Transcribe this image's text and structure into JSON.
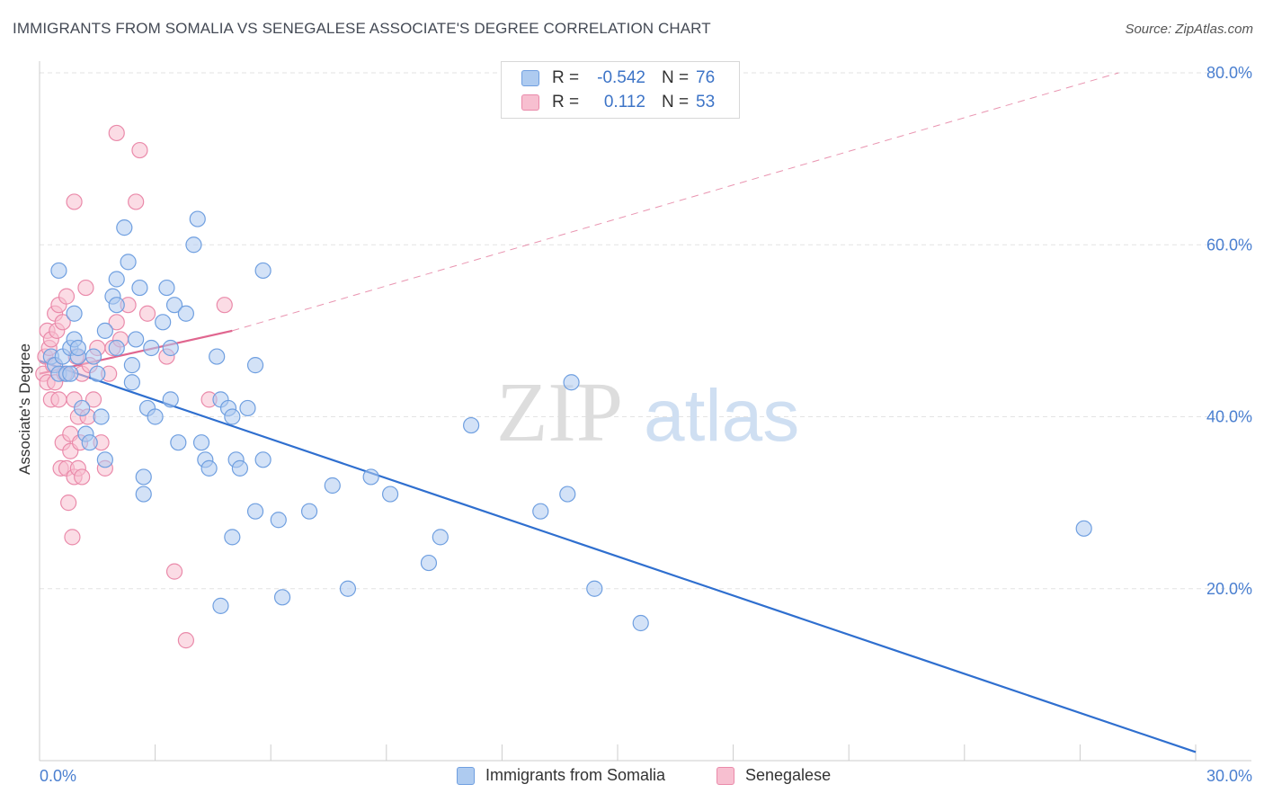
{
  "title": "IMMIGRANTS FROM SOMALIA VS SENEGALESE ASSOCIATE'S DEGREE CORRELATION CHART",
  "source": "Source: ZipAtlas.com",
  "watermark": {
    "zip": "ZIP",
    "atlas": "atlas"
  },
  "colors": {
    "blue_fill": "#aecbf0",
    "blue_stroke": "#6f9fe0",
    "blue_line": "#2f6fcf",
    "pink_fill": "#f7bfd0",
    "pink_stroke": "#ea8aaa",
    "pink_line": "#e0668f",
    "tick_text": "#4a7fd0",
    "grid": "#e3e3e3"
  },
  "legend": {
    "rows": [
      {
        "r_label": "R =",
        "r_value": "-0.542",
        "n_label": "N =",
        "n_value": "76"
      },
      {
        "r_label": "R =",
        "r_value": "0.112",
        "n_label": "N =",
        "n_value": "53"
      }
    ]
  },
  "chart_data": {
    "type": "scatter",
    "title": "IMMIGRANTS FROM SOMALIA VS SENEGALESE ASSOCIATE'S DEGREE CORRELATION CHART",
    "xlabel": "",
    "ylabel": "Associate's Degree",
    "xlim": [
      0,
      30
    ],
    "ylim": [
      0,
      80
    ],
    "x_tick_labels": [
      "0.0%",
      "30.0%"
    ],
    "y_ticks": [
      20,
      40,
      60,
      80
    ],
    "y_tick_labels": [
      "20.0%",
      "40.0%",
      "60.0%",
      "80.0%"
    ],
    "grid": true,
    "legend_position": "top-center",
    "series": [
      {
        "name": "Immigrants from Somalia",
        "r": -0.542,
        "n": 76,
        "trend": {
          "x": [
            0,
            30
          ],
          "y": [
            46.5,
            1.0
          ],
          "dashed": false
        },
        "points": [
          [
            0.3,
            47
          ],
          [
            0.4,
            46
          ],
          [
            0.5,
            45
          ],
          [
            0.5,
            57
          ],
          [
            0.6,
            47
          ],
          [
            0.7,
            45
          ],
          [
            0.8,
            48
          ],
          [
            0.8,
            45
          ],
          [
            0.9,
            49
          ],
          [
            0.9,
            52
          ],
          [
            1.0,
            47
          ],
          [
            1.0,
            48
          ],
          [
            1.1,
            41
          ],
          [
            1.2,
            38
          ],
          [
            1.3,
            37
          ],
          [
            1.4,
            47
          ],
          [
            1.5,
            45
          ],
          [
            1.6,
            40
          ],
          [
            1.7,
            50
          ],
          [
            1.7,
            35
          ],
          [
            1.9,
            54
          ],
          [
            2.0,
            53
          ],
          [
            2.0,
            56
          ],
          [
            2.0,
            48
          ],
          [
            2.2,
            62
          ],
          [
            2.3,
            58
          ],
          [
            2.4,
            46
          ],
          [
            2.4,
            44
          ],
          [
            2.5,
            49
          ],
          [
            2.6,
            55
          ],
          [
            2.7,
            33
          ],
          [
            2.8,
            41
          ],
          [
            2.9,
            48
          ],
          [
            3.0,
            40
          ],
          [
            3.2,
            51
          ],
          [
            3.3,
            55
          ],
          [
            3.4,
            42
          ],
          [
            3.5,
            53
          ],
          [
            3.6,
            37
          ],
          [
            3.8,
            52
          ],
          [
            4.0,
            60
          ],
          [
            4.1,
            63
          ],
          [
            4.2,
            37
          ],
          [
            4.3,
            35
          ],
          [
            4.4,
            34
          ],
          [
            4.6,
            47
          ],
          [
            4.7,
            42
          ],
          [
            4.9,
            41
          ],
          [
            5.0,
            40
          ],
          [
            5.1,
            35
          ],
          [
            5.2,
            34
          ],
          [
            5.4,
            41
          ],
          [
            5.6,
            29
          ],
          [
            5.6,
            46
          ],
          [
            5.8,
            35
          ],
          [
            5.8,
            57
          ],
          [
            6.2,
            28
          ],
          [
            6.3,
            19
          ],
          [
            4.7,
            18
          ],
          [
            7.0,
            29
          ],
          [
            7.6,
            32
          ],
          [
            8.0,
            20
          ],
          [
            8.6,
            33
          ],
          [
            9.1,
            31
          ],
          [
            10.1,
            23
          ],
          [
            10.4,
            26
          ],
          [
            11.2,
            39
          ],
          [
            13.0,
            29
          ],
          [
            13.8,
            44
          ],
          [
            13.7,
            31
          ],
          [
            14.4,
            20
          ],
          [
            15.6,
            16
          ],
          [
            27.1,
            27
          ],
          [
            2.7,
            31
          ],
          [
            5.0,
            26
          ],
          [
            3.4,
            48
          ]
        ]
      },
      {
        "name": "Senegalese",
        "r": 0.112,
        "n": 53,
        "trend": {
          "x": [
            0,
            5
          ],
          "y": [
            45.0,
            50.0
          ],
          "dashed": false,
          "ext_x": [
            5,
            28
          ],
          "ext_y": [
            50.0,
            80.0
          ]
        },
        "points": [
          [
            0.1,
            45
          ],
          [
            0.15,
            47
          ],
          [
            0.2,
            50
          ],
          [
            0.2,
            44
          ],
          [
            0.25,
            48
          ],
          [
            0.3,
            49
          ],
          [
            0.3,
            42
          ],
          [
            0.35,
            46
          ],
          [
            0.4,
            52
          ],
          [
            0.4,
            44
          ],
          [
            0.45,
            50
          ],
          [
            0.5,
            53
          ],
          [
            0.5,
            42
          ],
          [
            0.55,
            34
          ],
          [
            0.6,
            37
          ],
          [
            0.6,
            51
          ],
          [
            0.65,
            45
          ],
          [
            0.7,
            54
          ],
          [
            0.7,
            34
          ],
          [
            0.75,
            30
          ],
          [
            0.8,
            38
          ],
          [
            0.8,
            36
          ],
          [
            0.85,
            26
          ],
          [
            0.9,
            33
          ],
          [
            0.9,
            42
          ],
          [
            0.95,
            47
          ],
          [
            1.0,
            34
          ],
          [
            1.0,
            40
          ],
          [
            1.05,
            37
          ],
          [
            1.1,
            45
          ],
          [
            1.1,
            33
          ],
          [
            1.2,
            55
          ],
          [
            1.25,
            40
          ],
          [
            1.3,
            46
          ],
          [
            1.4,
            42
          ],
          [
            1.5,
            48
          ],
          [
            1.6,
            37
          ],
          [
            1.7,
            34
          ],
          [
            1.8,
            45
          ],
          [
            1.9,
            48
          ],
          [
            2.0,
            51
          ],
          [
            2.1,
            49
          ],
          [
            2.3,
            53
          ],
          [
            2.5,
            65
          ],
          [
            2.0,
            73
          ],
          [
            0.9,
            65
          ],
          [
            2.6,
            71
          ],
          [
            2.8,
            52
          ],
          [
            3.3,
            47
          ],
          [
            3.5,
            22
          ],
          [
            3.8,
            14
          ],
          [
            4.4,
            42
          ],
          [
            4.8,
            53
          ]
        ]
      }
    ]
  }
}
